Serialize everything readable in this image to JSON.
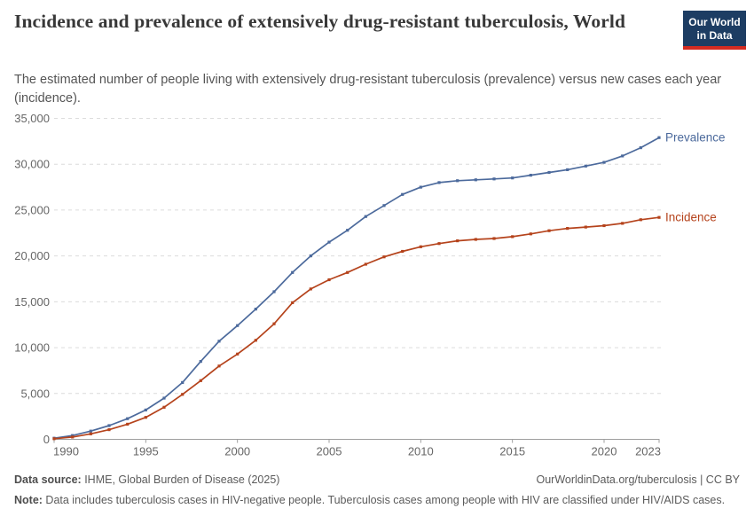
{
  "header": {
    "title": "Incidence and prevalence of extensively drug-resistant tuberculosis, World",
    "subtitle": "The estimated number of people living with extensively drug-resistant tuberculosis (prevalence) versus new cases each year (incidence).",
    "logo": {
      "line1": "Our World",
      "line2": "in Data"
    }
  },
  "chart_data": {
    "type": "line",
    "title": "Incidence and prevalence of extensively drug-resistant tuberculosis, World",
    "xlabel": "",
    "ylabel": "",
    "x": [
      1990,
      1991,
      1992,
      1993,
      1994,
      1995,
      1996,
      1997,
      1998,
      1999,
      2000,
      2001,
      2002,
      2003,
      2004,
      2005,
      2006,
      2007,
      2008,
      2009,
      2010,
      2011,
      2012,
      2013,
      2014,
      2015,
      2016,
      2017,
      2018,
      2019,
      2020,
      2021,
      2022,
      2023
    ],
    "series": [
      {
        "name": "Prevalence",
        "color": "#4C6A9C",
        "values": [
          130,
          420,
          900,
          1500,
          2250,
          3200,
          4500,
          6200,
          8500,
          10700,
          12400,
          14200,
          16100,
          18200,
          20000,
          21500,
          22800,
          24300,
          25500,
          26700,
          27500,
          28000,
          28200,
          28300,
          28400,
          28500,
          28800,
          29100,
          29400,
          29800,
          30200,
          30900,
          31800,
          32900
        ]
      },
      {
        "name": "Incidence",
        "color": "#B5431C",
        "values": [
          70,
          250,
          600,
          1050,
          1650,
          2400,
          3500,
          4900,
          6400,
          8000,
          9300,
          10800,
          12600,
          14900,
          16400,
          17400,
          18200,
          19100,
          19900,
          20500,
          21000,
          21350,
          21650,
          21800,
          21900,
          22100,
          22400,
          22750,
          23000,
          23150,
          23300,
          23550,
          23950,
          24200
        ]
      }
    ],
    "xticks": [
      1990,
      1995,
      2000,
      2005,
      2010,
      2015,
      2020,
      2023
    ],
    "yticks": [
      0,
      5000,
      10000,
      15000,
      20000,
      25000,
      30000,
      35000
    ],
    "xlim": [
      1990,
      2023
    ],
    "ylim": [
      0,
      35000
    ],
    "grid": "horizontal-dashed",
    "legend": "end-of-line-labels",
    "colors": {
      "grid": "#dcdcdc",
      "axis": "#9e9e9e",
      "tick_text": "#666666"
    }
  },
  "footer": {
    "source_label": "Data source:",
    "source_text": " IHME, Global Burden of Disease (2025)",
    "rights": "OurWorldinData.org/tuberculosis | CC BY",
    "note_label": "Note:",
    "note_text": " Data includes tuberculosis cases in HIV-negative people. Tuberculosis cases among people with HIV are classified under HIV/AIDS cases."
  }
}
